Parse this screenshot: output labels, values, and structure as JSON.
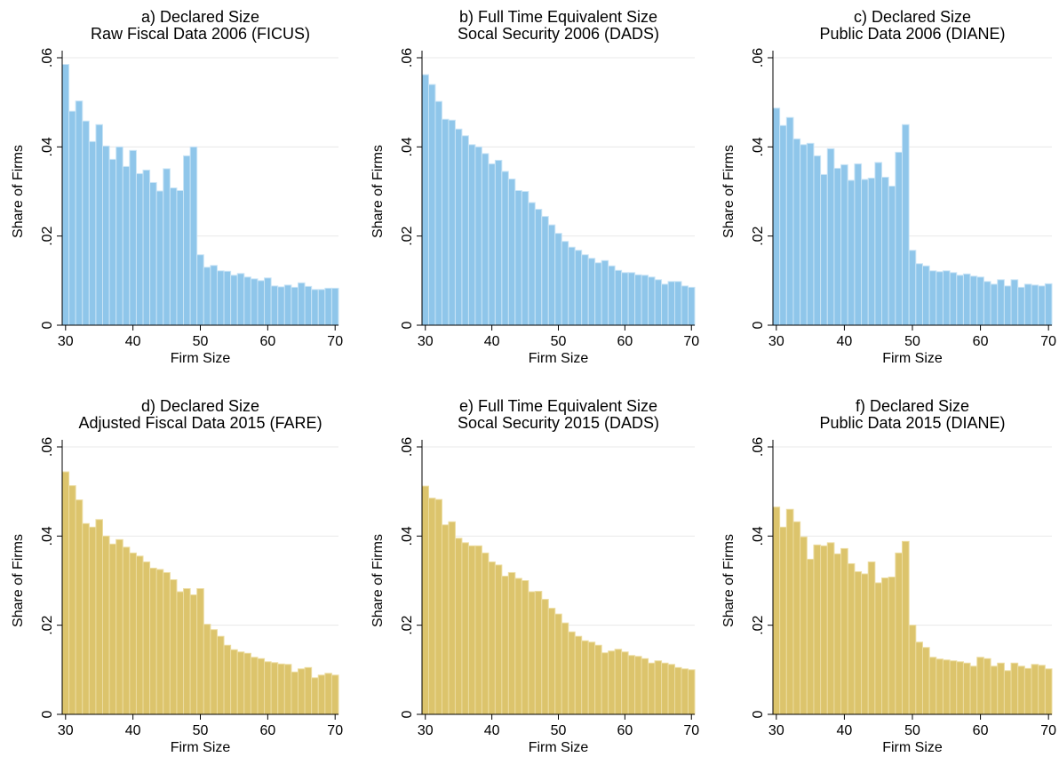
{
  "chart_data": [
    {
      "type": "bar",
      "title": "a) Declared Size",
      "subtitle": "Raw Fiscal Data 2006 (FICUS)",
      "xlabel": "Firm Size",
      "ylabel": "Share of Firms",
      "x": [
        30,
        31,
        32,
        33,
        34,
        35,
        36,
        37,
        38,
        39,
        40,
        41,
        42,
        43,
        44,
        45,
        46,
        47,
        48,
        49,
        50,
        51,
        52,
        53,
        54,
        55,
        56,
        57,
        58,
        59,
        60,
        61,
        62,
        63,
        64,
        65,
        66,
        67,
        68,
        69,
        70
      ],
      "values": [
        0.0585,
        0.048,
        0.0503,
        0.0458,
        0.0412,
        0.045,
        0.0402,
        0.0372,
        0.04,
        0.0356,
        0.0392,
        0.034,
        0.0348,
        0.032,
        0.0301,
        0.0351,
        0.0308,
        0.0302,
        0.038,
        0.04,
        0.0158,
        0.013,
        0.0134,
        0.0122,
        0.0121,
        0.0112,
        0.0116,
        0.0108,
        0.0104,
        0.01,
        0.0106,
        0.0088,
        0.0086,
        0.009,
        0.0085,
        0.0095,
        0.0087,
        0.008,
        0.008,
        0.0083,
        0.0083
      ],
      "xlim": [
        29.5,
        70.5
      ],
      "ylim": [
        0,
        0.06
      ],
      "xticks": [
        30,
        40,
        50,
        60,
        70
      ],
      "yticks": [
        0,
        0.02,
        0.04,
        0.06
      ],
      "ytick_labels": [
        "0",
        ".02",
        ".04",
        ".06"
      ],
      "grid": "horizontal",
      "bar_color": "#8fc6ea",
      "bar_edge": "#c9e4f6"
    },
    {
      "type": "bar",
      "title": "b) Full Time Equivalent Size",
      "subtitle": "Socal Security 2006 (DADS)",
      "xlabel": "Firm Size",
      "ylabel": "Share of Firms",
      "x": [
        30,
        31,
        32,
        33,
        34,
        35,
        36,
        37,
        38,
        39,
        40,
        41,
        42,
        43,
        44,
        45,
        46,
        47,
        48,
        49,
        50,
        51,
        52,
        53,
        54,
        55,
        56,
        57,
        58,
        59,
        60,
        61,
        62,
        63,
        64,
        65,
        66,
        67,
        68,
        69,
        70
      ],
      "values": [
        0.0562,
        0.054,
        0.0502,
        0.0462,
        0.046,
        0.044,
        0.0425,
        0.0405,
        0.04,
        0.0385,
        0.0362,
        0.037,
        0.0345,
        0.0328,
        0.0302,
        0.03,
        0.0275,
        0.026,
        0.0244,
        0.0225,
        0.0206,
        0.0188,
        0.0175,
        0.0168,
        0.0158,
        0.015,
        0.014,
        0.0145,
        0.0133,
        0.0123,
        0.0118,
        0.0118,
        0.0113,
        0.0112,
        0.0108,
        0.0102,
        0.0092,
        0.0098,
        0.0098,
        0.0088,
        0.0085
      ],
      "xlim": [
        29.5,
        70.5
      ],
      "ylim": [
        0,
        0.06
      ],
      "xticks": [
        30,
        40,
        50,
        60,
        70
      ],
      "yticks": [
        0,
        0.02,
        0.04,
        0.06
      ],
      "ytick_labels": [
        "0",
        ".02",
        ".04",
        ".06"
      ],
      "grid": "horizontal",
      "bar_color": "#8fc6ea",
      "bar_edge": "#c9e4f6"
    },
    {
      "type": "bar",
      "title": "c) Declared Size",
      "subtitle": "Public Data 2006 (DIANE)",
      "xlabel": "Firm Size",
      "ylabel": "Share of Firms",
      "x": [
        30,
        31,
        32,
        33,
        34,
        35,
        36,
        37,
        38,
        39,
        40,
        41,
        42,
        43,
        44,
        45,
        46,
        47,
        48,
        49,
        50,
        51,
        52,
        53,
        54,
        55,
        56,
        57,
        58,
        59,
        60,
        61,
        62,
        63,
        64,
        65,
        66,
        67,
        68,
        69,
        70
      ],
      "values": [
        0.0487,
        0.0448,
        0.0466,
        0.0418,
        0.0405,
        0.0408,
        0.038,
        0.0338,
        0.0396,
        0.0352,
        0.036,
        0.0325,
        0.0362,
        0.0327,
        0.033,
        0.0365,
        0.0332,
        0.0312,
        0.0388,
        0.045,
        0.0168,
        0.0138,
        0.0133,
        0.0122,
        0.012,
        0.0122,
        0.0118,
        0.0112,
        0.0115,
        0.011,
        0.0108,
        0.0098,
        0.0092,
        0.0102,
        0.0088,
        0.0102,
        0.0085,
        0.0092,
        0.009,
        0.0088,
        0.0093
      ],
      "xlim": [
        29.5,
        70.5
      ],
      "ylim": [
        0,
        0.06
      ],
      "xticks": [
        30,
        40,
        50,
        60,
        70
      ],
      "yticks": [
        0,
        0.02,
        0.04,
        0.06
      ],
      "ytick_labels": [
        "0",
        ".02",
        ".04",
        ".06"
      ],
      "grid": "horizontal",
      "bar_color": "#8fc6ea",
      "bar_edge": "#c9e4f6"
    },
    {
      "type": "bar",
      "title": "d) Declared Size",
      "subtitle": "Adjusted Fiscal Data 2015 (FARE)",
      "xlabel": "Firm Size",
      "ylabel": "Share of Firms",
      "x": [
        30,
        31,
        32,
        33,
        34,
        35,
        36,
        37,
        38,
        39,
        40,
        41,
        42,
        43,
        44,
        45,
        46,
        47,
        48,
        49,
        50,
        51,
        52,
        53,
        54,
        55,
        56,
        57,
        58,
        59,
        60,
        61,
        62,
        63,
        64,
        65,
        66,
        67,
        68,
        69,
        70
      ],
      "values": [
        0.0544,
        0.0513,
        0.0481,
        0.0428,
        0.042,
        0.0437,
        0.04,
        0.0382,
        0.0392,
        0.0375,
        0.0362,
        0.0355,
        0.0342,
        0.0328,
        0.0325,
        0.0318,
        0.0302,
        0.0275,
        0.0282,
        0.0268,
        0.0282,
        0.0202,
        0.019,
        0.0175,
        0.0155,
        0.0145,
        0.014,
        0.0137,
        0.0128,
        0.0125,
        0.0118,
        0.0116,
        0.0113,
        0.0112,
        0.0095,
        0.0102,
        0.0105,
        0.0082,
        0.0088,
        0.0092,
        0.0088
      ],
      "xlim": [
        29.5,
        70.5
      ],
      "ylim": [
        0,
        0.06
      ],
      "xticks": [
        30,
        40,
        50,
        60,
        70
      ],
      "yticks": [
        0,
        0.02,
        0.04,
        0.06
      ],
      "ytick_labels": [
        "0",
        ".02",
        ".04",
        ".06"
      ],
      "grid": "horizontal",
      "bar_color": "#dcc46c",
      "bar_edge": "#ecdca0"
    },
    {
      "type": "bar",
      "title": "e) Full Time Equivalent Size",
      "subtitle": "Socal Security 2015 (DADS)",
      "xlabel": "Firm Size",
      "ylabel": "Share of Firms",
      "x": [
        30,
        31,
        32,
        33,
        34,
        35,
        36,
        37,
        38,
        39,
        40,
        41,
        42,
        43,
        44,
        45,
        46,
        47,
        48,
        49,
        50,
        51,
        52,
        53,
        54,
        55,
        56,
        57,
        58,
        59,
        60,
        61,
        62,
        63,
        64,
        65,
        66,
        67,
        68,
        69,
        70
      ],
      "values": [
        0.0512,
        0.0485,
        0.0482,
        0.0425,
        0.0432,
        0.0395,
        0.0385,
        0.0378,
        0.0378,
        0.0362,
        0.0342,
        0.0335,
        0.031,
        0.0318,
        0.0305,
        0.03,
        0.0275,
        0.0276,
        0.0258,
        0.0238,
        0.0225,
        0.0205,
        0.0185,
        0.0175,
        0.0165,
        0.0162,
        0.0155,
        0.0138,
        0.0142,
        0.0146,
        0.014,
        0.0132,
        0.013,
        0.0125,
        0.0115,
        0.012,
        0.0115,
        0.0112,
        0.0105,
        0.0102,
        0.01
      ],
      "xlim": [
        29.5,
        70.5
      ],
      "ylim": [
        0,
        0.06
      ],
      "xticks": [
        30,
        40,
        50,
        60,
        70
      ],
      "yticks": [
        0,
        0.02,
        0.04,
        0.06
      ],
      "ytick_labels": [
        "0",
        ".02",
        ".04",
        ".06"
      ],
      "grid": "horizontal",
      "bar_color": "#dcc46c",
      "bar_edge": "#ecdca0"
    },
    {
      "type": "bar",
      "title": "f) Declared Size",
      "subtitle": "Public Data 2015 (DIANE)",
      "xlabel": "Firm Size",
      "ylabel": "Share of Firms",
      "x": [
        30,
        31,
        32,
        33,
        34,
        35,
        36,
        37,
        38,
        39,
        40,
        41,
        42,
        43,
        44,
        45,
        46,
        47,
        48,
        49,
        50,
        51,
        52,
        53,
        54,
        55,
        56,
        57,
        58,
        59,
        60,
        61,
        62,
        63,
        64,
        65,
        66,
        67,
        68,
        69,
        70
      ],
      "values": [
        0.0465,
        0.042,
        0.046,
        0.0432,
        0.0398,
        0.0348,
        0.038,
        0.0378,
        0.0385,
        0.036,
        0.0372,
        0.0338,
        0.032,
        0.0315,
        0.0342,
        0.0295,
        0.0306,
        0.0308,
        0.0362,
        0.0388,
        0.02,
        0.0162,
        0.015,
        0.0128,
        0.0124,
        0.0122,
        0.012,
        0.0118,
        0.0115,
        0.0108,
        0.0128,
        0.0125,
        0.0108,
        0.0115,
        0.0098,
        0.0115,
        0.0108,
        0.0103,
        0.0112,
        0.011,
        0.0102
      ],
      "xlim": [
        29.5,
        70.5
      ],
      "ylim": [
        0,
        0.06
      ],
      "xticks": [
        30,
        40,
        50,
        60,
        70
      ],
      "yticks": [
        0,
        0.02,
        0.04,
        0.06
      ],
      "ytick_labels": [
        "0",
        ".02",
        ".04",
        ".06"
      ],
      "grid": "horizontal",
      "bar_color": "#dcc46c",
      "bar_edge": "#ecdca0"
    }
  ]
}
